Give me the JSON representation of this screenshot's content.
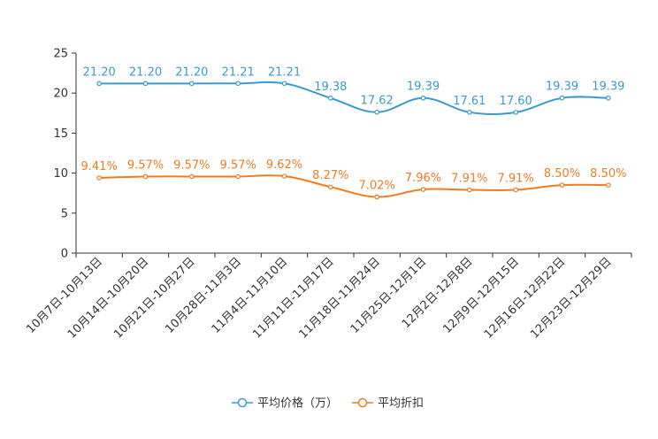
{
  "chart_data": {
    "type": "line",
    "title": "",
    "xlabel": "",
    "ylabel": "",
    "ylim": [
      0,
      25
    ],
    "yticks": [
      0,
      5,
      10,
      15,
      20,
      25
    ],
    "grid": false,
    "legend_position": "bottom-center",
    "categories": [
      "10月7日-10月13日",
      "10月14日-10月20日",
      "10月21日-10月27日",
      "10月28日-11月3日",
      "11月4日-11月10日",
      "11月11日-11月17日",
      "11月18日-11月24日",
      "11月25日-12月1日",
      "12月2日-12月8日",
      "12月9日-12月15日",
      "12月16日-12月22日",
      "12月23日-12月29日"
    ],
    "series": [
      {
        "name": "平均价格（万）",
        "color": "#3b9bd0",
        "values": [
          21.2,
          21.2,
          21.2,
          21.21,
          21.21,
          19.38,
          17.62,
          19.39,
          17.61,
          17.6,
          19.39,
          19.39
        ],
        "labels": [
          "21.20",
          "21.20",
          "21.20",
          "21.21",
          "21.21",
          "19.38",
          "17.62",
          "19.39",
          "17.61",
          "17.60",
          "19.39",
          "19.39"
        ]
      },
      {
        "name": "平均折扣",
        "color": "#f07c22",
        "values": [
          9.41,
          9.57,
          9.57,
          9.57,
          9.62,
          8.27,
          7.02,
          7.96,
          7.91,
          7.91,
          8.5,
          8.5
        ],
        "labels": [
          "9.41%",
          "9.57%",
          "9.57%",
          "9.57%",
          "9.62%",
          "8.27%",
          "7.02%",
          "7.96%",
          "7.91%",
          "7.91%",
          "8.50%",
          "8.50%"
        ]
      }
    ]
  }
}
